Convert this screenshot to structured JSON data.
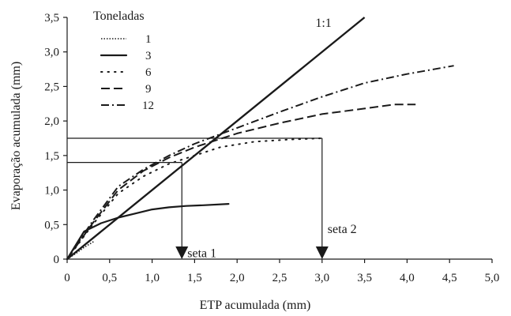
{
  "chart_data": {
    "type": "line",
    "title": "",
    "xlabel": "ETP acumulada (mm)",
    "ylabel": "Evaporação acumulada (mm)",
    "xlim": [
      0,
      5
    ],
    "ylim": [
      0,
      3.5
    ],
    "x_ticks": [
      0,
      0.5,
      1.0,
      1.5,
      2.0,
      2.5,
      3.0,
      3.5,
      4.0,
      4.5,
      5.0
    ],
    "x_tick_labels": [
      "0",
      "0,5",
      "1,0",
      "1,5",
      "2,0",
      "2,5",
      "3,0",
      "3,5",
      "4,0",
      "4,5",
      "5,0"
    ],
    "y_ticks": [
      0,
      0.5,
      1.0,
      1.5,
      2.0,
      2.5,
      3.0,
      3.5
    ],
    "y_tick_labels": [
      "0",
      "0,5",
      "1,0",
      "1,5",
      "2,0",
      "2,5",
      "3,0",
      "3,5"
    ],
    "grid": false,
    "legend": {
      "title": "Toneladas",
      "placement": "top-left"
    },
    "series": [
      {
        "name": "1",
        "style": "dotted",
        "points": [
          [
            0,
            0
          ],
          [
            0.1,
            0.08
          ],
          [
            0.2,
            0.17
          ],
          [
            0.32,
            0.26
          ]
        ]
      },
      {
        "name": "3",
        "style": "solid",
        "points": [
          [
            0,
            0
          ],
          [
            0.2,
            0.4
          ],
          [
            0.4,
            0.52
          ],
          [
            0.6,
            0.6
          ],
          [
            0.8,
            0.66
          ],
          [
            1.0,
            0.72
          ],
          [
            1.2,
            0.75
          ],
          [
            1.4,
            0.77
          ],
          [
            1.6,
            0.78
          ],
          [
            1.9,
            0.8
          ]
        ]
      },
      {
        "name": "6",
        "style": "sparse-dotted",
        "points": [
          [
            0,
            0
          ],
          [
            0.3,
            0.5
          ],
          [
            0.6,
            0.95
          ],
          [
            0.9,
            1.2
          ],
          [
            1.2,
            1.38
          ],
          [
            1.5,
            1.5
          ],
          [
            1.8,
            1.62
          ],
          [
            2.2,
            1.7
          ],
          [
            2.6,
            1.73
          ],
          [
            3.0,
            1.75
          ]
        ]
      },
      {
        "name": "9",
        "style": "dashed",
        "points": [
          [
            0,
            0
          ],
          [
            0.3,
            0.52
          ],
          [
            0.6,
            1.0
          ],
          [
            0.9,
            1.28
          ],
          [
            1.2,
            1.47
          ],
          [
            1.5,
            1.62
          ],
          [
            2.0,
            1.82
          ],
          [
            2.5,
            1.97
          ],
          [
            3.0,
            2.1
          ],
          [
            3.5,
            2.18
          ],
          [
            3.85,
            2.24
          ],
          [
            4.1,
            2.24
          ]
        ]
      },
      {
        "name": "12",
        "style": "dash-dot",
        "points": [
          [
            0,
            0
          ],
          [
            0.3,
            0.55
          ],
          [
            0.6,
            1.05
          ],
          [
            0.9,
            1.3
          ],
          [
            1.2,
            1.5
          ],
          [
            1.5,
            1.67
          ],
          [
            2.0,
            1.9
          ],
          [
            2.5,
            2.13
          ],
          [
            3.0,
            2.35
          ],
          [
            3.5,
            2.55
          ],
          [
            4.0,
            2.68
          ],
          [
            4.55,
            2.8
          ]
        ]
      }
    ],
    "reference_line": {
      "label": "1:1",
      "points": [
        [
          0,
          0
        ],
        [
          3.5,
          3.5
        ]
      ]
    },
    "annotations": [
      {
        "label": "seta 1",
        "y": 1.4,
        "x_end": 1.35,
        "arrow_x": 1.35
      },
      {
        "label": "seta 2",
        "y": 1.75,
        "x_end": 3.0,
        "arrow_x": 3.0
      }
    ]
  }
}
